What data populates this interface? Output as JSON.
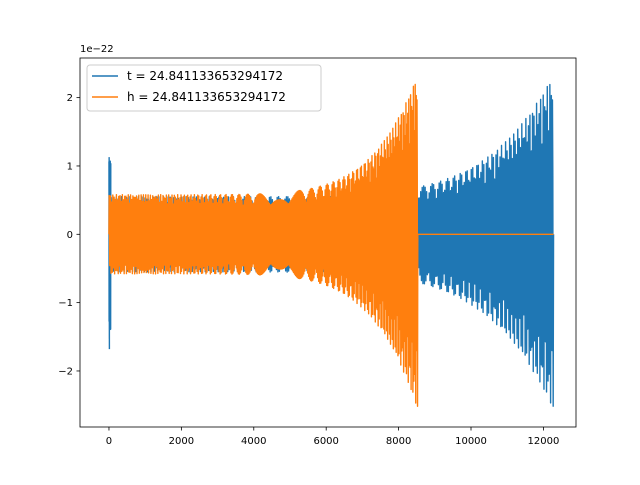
{
  "chart_data": {
    "type": "line",
    "title": "",
    "xlabel": "",
    "ylabel": "",
    "y_offset_label": "1e−22",
    "xlim": [
      -800,
      12900
    ],
    "ylim": [
      -2.82,
      2.58
    ],
    "xticks": [
      0,
      2000,
      4000,
      6000,
      8000,
      10000,
      12000
    ],
    "xtick_labels": [
      "0",
      "2000",
      "4000",
      "6000",
      "8000",
      "10000",
      "12000"
    ],
    "yticks": [
      -2,
      -1,
      0,
      1,
      2
    ],
    "ytick_labels": [
      "−2",
      "−1",
      "0",
      "1",
      "2"
    ],
    "grid": false,
    "legend_position": "upper-left",
    "series": [
      {
        "name": "t = 24.841133653294172",
        "color": "#1f77b4",
        "segments": [
          {
            "kind": "burst",
            "x_start": 0,
            "x_end": 50,
            "peak_top": 1.13,
            "peak_bottom": -1.68
          },
          {
            "kind": "chirp",
            "x_start": 50,
            "x_end": 12280,
            "amp_start": 0.55,
            "amp_end": 2.35,
            "amp_bottom_end": -2.58
          }
        ]
      },
      {
        "name": "h = 24.841133653294172",
        "color": "#ff7f0e",
        "segments": [
          {
            "kind": "chirp",
            "x_start": 0,
            "x_end": 8530,
            "amp_start": 0.58,
            "amp_end": 2.35,
            "amp_bottom_end": -2.58
          },
          {
            "kind": "flat",
            "x_start": 8530,
            "x_end": 12280,
            "value": 0.0
          }
        ]
      }
    ]
  }
}
